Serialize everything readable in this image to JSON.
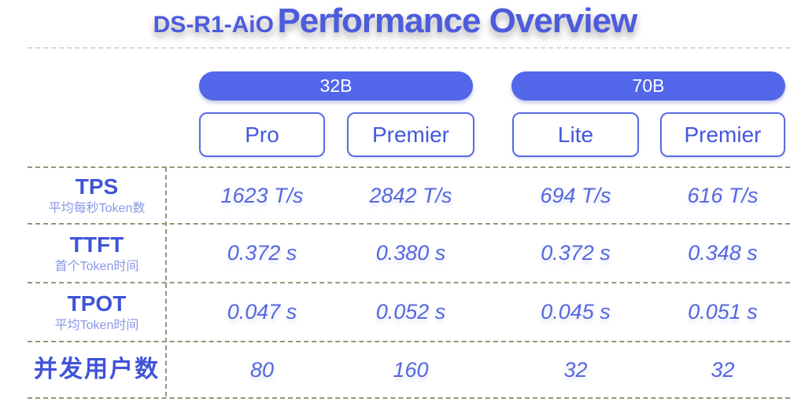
{
  "page": {
    "title_prefix": "DS-R1-AiO",
    "title_main": "Performance Overview"
  },
  "colors": {
    "accent_blue": "#5267ea",
    "card_border_blue": "#5b6ae4",
    "title_blue": "#4d5bdd",
    "label_blue": "#3f53d8",
    "sublabel_blue": "#8b96e8",
    "value_blue": "#5668de",
    "table_dash": "#9b9379",
    "title_dash": "#d9d9d9"
  },
  "chart_data": {
    "type": "table",
    "title": "DS-R1-AiO Performance Overview",
    "column_groups": [
      {
        "group": "32B",
        "columns": [
          "Pro",
          "Premier"
        ]
      },
      {
        "group": "70B",
        "columns": [
          "Lite",
          "Premier"
        ]
      }
    ],
    "columns": [
      "32B Pro",
      "32B Premier",
      "70B Lite",
      "70B Premier"
    ],
    "rows": [
      {
        "metric": "TPS",
        "metric_desc": "平均每秒Token数",
        "values": [
          "1623 T/s",
          "2842 T/s",
          "694 T/s",
          "616 T/s"
        ]
      },
      {
        "metric": "TTFT",
        "metric_desc": "首个Token时间",
        "values": [
          "0.372 s",
          "0.380 s",
          "0.372 s",
          "0.348 s"
        ]
      },
      {
        "metric": "TPOT",
        "metric_desc": "平均Token时间",
        "values": [
          "0.047 s",
          "0.052 s",
          "0.045 s",
          "0.051 s"
        ]
      },
      {
        "metric": "并发用户数",
        "metric_desc": "",
        "values": [
          "80",
          "160",
          "32",
          "32"
        ]
      }
    ]
  }
}
